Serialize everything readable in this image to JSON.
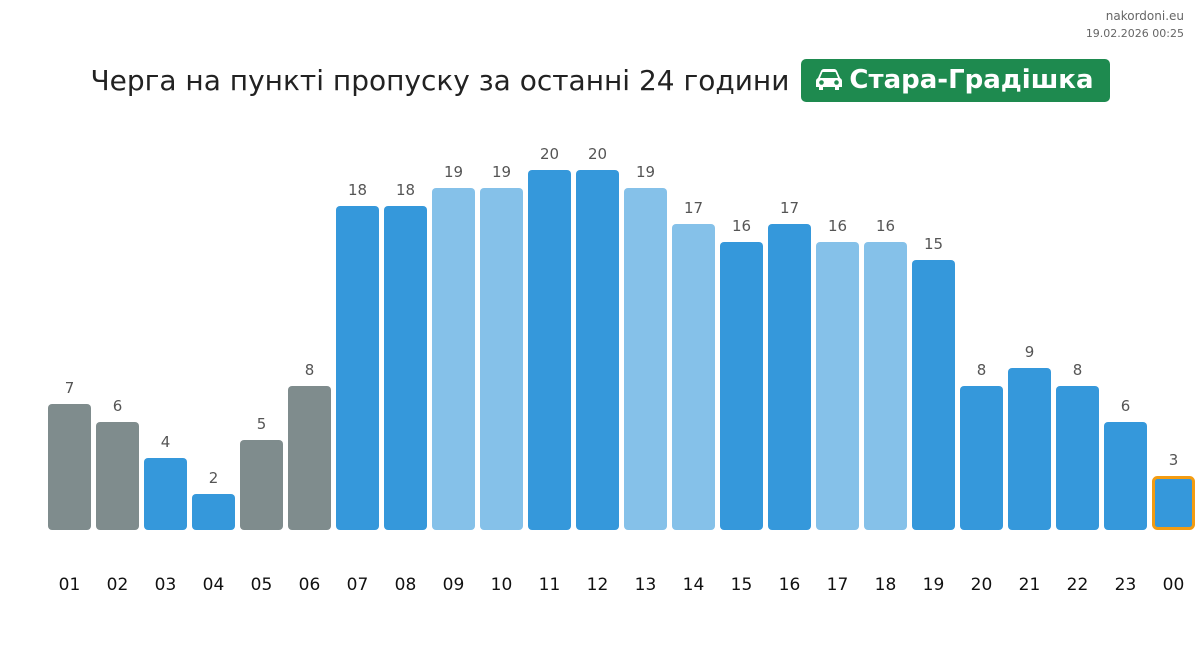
{
  "site": {
    "name": "nakordoni.eu",
    "timestamp": "19.02.2026 00:25"
  },
  "header": {
    "title": "Черга на пункті пропуску за останні 24 години",
    "checkpoint": "Стара-Градішка",
    "checkpoint_icon": "car-icon",
    "checkpoint_color": "#1e8a4f"
  },
  "colors": {
    "gray": "#7f8c8d",
    "blue": "#3598db",
    "light_blue": "#85c1e9",
    "current_outline": "#f39c12"
  },
  "chart_data": {
    "type": "bar",
    "categories": [
      "01",
      "02",
      "03",
      "04",
      "05",
      "06",
      "07",
      "08",
      "09",
      "10",
      "11",
      "12",
      "13",
      "14",
      "15",
      "16",
      "17",
      "18",
      "19",
      "20",
      "21",
      "22",
      "23",
      "00"
    ],
    "values": [
      7,
      6,
      4,
      2,
      5,
      8,
      18,
      18,
      19,
      19,
      20,
      20,
      19,
      17,
      16,
      17,
      16,
      16,
      15,
      8,
      9,
      8,
      6,
      3
    ],
    "bar_colors": [
      "gray",
      "gray",
      "blue",
      "blue",
      "gray",
      "gray",
      "blue",
      "blue",
      "light_blue",
      "light_blue",
      "blue",
      "blue",
      "light_blue",
      "light_blue",
      "blue",
      "blue",
      "light_blue",
      "light_blue",
      "blue",
      "blue",
      "blue",
      "blue",
      "blue",
      "blue"
    ],
    "highlight_index": 23,
    "ylim": [
      0,
      20
    ],
    "grid": false,
    "legend": "none"
  }
}
